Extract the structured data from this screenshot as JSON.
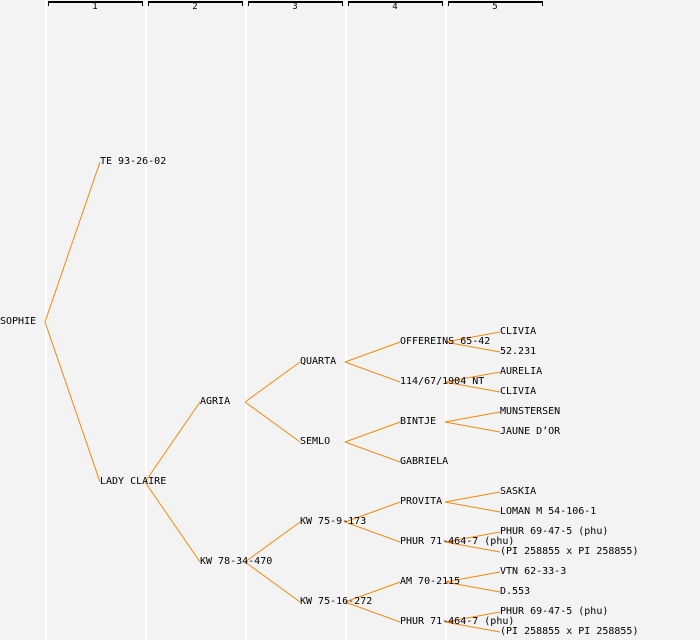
{
  "columns": [
    "1",
    "2",
    "3",
    "4",
    "5"
  ],
  "colors": {
    "edge": "#f28a10",
    "background": "#f3f3f3",
    "divider": "#ffffff",
    "text": "#000000"
  },
  "tree": {
    "name": "SOPHIE",
    "children": [
      {
        "name": "TE 93-26-02",
        "children": []
      },
      {
        "name": "LADY CLAIRE",
        "children": [
          {
            "name": "AGRIA",
            "children": [
              {
                "name": "QUARTA",
                "children": [
                  {
                    "name": "OFFEREINS 65-42",
                    "children": [
                      {
                        "name": "CLIVIA"
                      },
                      {
                        "name": "52.231"
                      }
                    ]
                  },
                  {
                    "name": "114/67/1904 NT",
                    "children": [
                      {
                        "name": "AURELIA"
                      },
                      {
                        "name": "CLIVIA"
                      }
                    ]
                  }
                ]
              },
              {
                "name": "SEMLO",
                "children": [
                  {
                    "name": "BINTJE",
                    "children": [
                      {
                        "name": "MUNSTERSEN"
                      },
                      {
                        "name": "JAUNE D’OR"
                      }
                    ]
                  },
                  {
                    "name": "GABRIELA",
                    "children": []
                  }
                ]
              }
            ]
          },
          {
            "name": "KW 78-34-470",
            "children": [
              {
                "name": "KW 75-9-173",
                "children": [
                  {
                    "name": "PROVITA",
                    "children": [
                      {
                        "name": "SASKIA"
                      },
                      {
                        "name": "LOMAN M 54-106-1"
                      }
                    ]
                  },
                  {
                    "name": "PHUR 71-464-7 (phu)",
                    "children": [
                      {
                        "name": "PHUR 69-47-5 (phu)"
                      },
                      {
                        "name": "(PI 258855 x PI 258855)"
                      }
                    ]
                  }
                ]
              },
              {
                "name": "KW 75-16-272",
                "children": [
                  {
                    "name": "AM 70-2115",
                    "children": [
                      {
                        "name": "VTN 62-33-3"
                      },
                      {
                        "name": "D.553"
                      }
                    ]
                  },
                  {
                    "name": "PHUR 71-464-7 (phu)",
                    "children": [
                      {
                        "name": "PHUR 69-47-5 (phu)"
                      },
                      {
                        "name": "(PI 258855 x PI 258855)"
                      }
                    ]
                  }
                ]
              }
            ]
          }
        ]
      }
    ]
  }
}
